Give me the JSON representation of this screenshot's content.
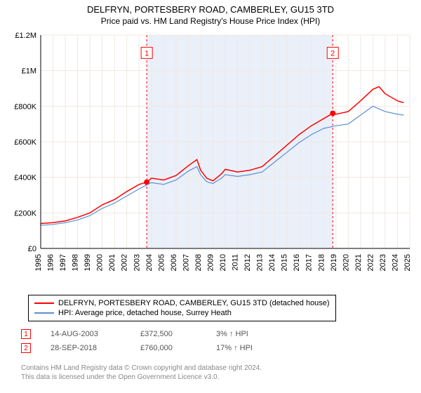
{
  "title": "DELFRYN, PORTESBERY ROAD, CAMBERLEY, GU15 3TD",
  "subtitle": "Price paid vs. HM Land Registry's House Price Index (HPI)",
  "chart": {
    "type": "line",
    "plot_bg": "#ffffff",
    "highlight_bg": "#eaf0fa",
    "highlight_xrange": [
      2003.62,
      2018.74
    ],
    "xlim": [
      1995,
      2025
    ],
    "ylim": [
      0,
      1200000
    ],
    "y_ticks": [
      0,
      200000,
      400000,
      600000,
      800000,
      1000000,
      1200000
    ],
    "y_tick_labels": [
      "£0",
      "£200K",
      "£400K",
      "£600K",
      "£800K",
      "£1M",
      "£1.2M"
    ],
    "x_ticks": [
      1995,
      1996,
      1997,
      1998,
      1999,
      2000,
      2001,
      2002,
      2003,
      2004,
      2005,
      2006,
      2007,
      2008,
      2009,
      2010,
      2011,
      2012,
      2013,
      2014,
      2015,
      2016,
      2017,
      2018,
      2019,
      2020,
      2021,
      2022,
      2023,
      2024,
      2025
    ],
    "grid_color": "#f0e8e0",
    "axis_color": "#000000",
    "series": [
      {
        "name": "DELFRYN, PORTESBERY ROAD, CAMBERLEY, GU15 3TD (detached house)",
        "color": "#ff0000",
        "width": 1.5,
        "data": [
          [
            1995,
            140000
          ],
          [
            1996,
            145000
          ],
          [
            1997,
            155000
          ],
          [
            1998,
            175000
          ],
          [
            1999,
            200000
          ],
          [
            2000,
            245000
          ],
          [
            2001,
            275000
          ],
          [
            2002,
            320000
          ],
          [
            2003,
            360000
          ],
          [
            2003.62,
            372500
          ],
          [
            2004,
            395000
          ],
          [
            2005,
            385000
          ],
          [
            2006,
            410000
          ],
          [
            2007,
            465000
          ],
          [
            2007.7,
            500000
          ],
          [
            2008,
            440000
          ],
          [
            2008.5,
            395000
          ],
          [
            2009,
            380000
          ],
          [
            2009.7,
            420000
          ],
          [
            2010,
            445000
          ],
          [
            2011,
            430000
          ],
          [
            2012,
            440000
          ],
          [
            2013,
            460000
          ],
          [
            2014,
            520000
          ],
          [
            2015,
            580000
          ],
          [
            2016,
            640000
          ],
          [
            2017,
            690000
          ],
          [
            2018,
            730000
          ],
          [
            2018.74,
            760000
          ],
          [
            2019,
            755000
          ],
          [
            2020,
            770000
          ],
          [
            2021,
            830000
          ],
          [
            2022,
            895000
          ],
          [
            2022.5,
            910000
          ],
          [
            2023,
            870000
          ],
          [
            2024,
            830000
          ],
          [
            2024.5,
            820000
          ]
        ]
      },
      {
        "name": "HPI: Average price, detached house, Surrey Heath",
        "color": "#5b8fd6",
        "width": 1.2,
        "data": [
          [
            1995,
            130000
          ],
          [
            1996,
            135000
          ],
          [
            1997,
            145000
          ],
          [
            1998,
            160000
          ],
          [
            1999,
            185000
          ],
          [
            2000,
            225000
          ],
          [
            2001,
            255000
          ],
          [
            2002,
            295000
          ],
          [
            2003,
            335000
          ],
          [
            2004,
            370000
          ],
          [
            2005,
            360000
          ],
          [
            2006,
            385000
          ],
          [
            2007,
            435000
          ],
          [
            2007.7,
            460000
          ],
          [
            2008,
            415000
          ],
          [
            2008.5,
            375000
          ],
          [
            2009,
            365000
          ],
          [
            2009.7,
            395000
          ],
          [
            2010,
            415000
          ],
          [
            2011,
            405000
          ],
          [
            2012,
            415000
          ],
          [
            2013,
            430000
          ],
          [
            2014,
            485000
          ],
          [
            2015,
            540000
          ],
          [
            2016,
            595000
          ],
          [
            2017,
            640000
          ],
          [
            2018,
            675000
          ],
          [
            2019,
            690000
          ],
          [
            2020,
            700000
          ],
          [
            2021,
            750000
          ],
          [
            2022,
            800000
          ],
          [
            2023,
            770000
          ],
          [
            2024,
            755000
          ],
          [
            2024.5,
            750000
          ]
        ]
      }
    ],
    "markers": [
      {
        "label": "1",
        "x": 2003.62,
        "y": 372500,
        "box_y": 1100000
      },
      {
        "label": "2",
        "x": 2018.74,
        "y": 760000,
        "box_y": 1100000
      }
    ]
  },
  "legend": {
    "items": [
      {
        "color": "#ff0000",
        "label": "DELFRYN, PORTESBERY ROAD, CAMBERLEY, GU15 3TD (detached house)"
      },
      {
        "color": "#5b8fd6",
        "label": "HPI: Average price, detached house, Surrey Heath"
      }
    ]
  },
  "transactions": [
    {
      "marker": "1",
      "date": "14-AUG-2003",
      "price": "£372,500",
      "delta": "3% ↑ HPI"
    },
    {
      "marker": "2",
      "date": "28-SEP-2018",
      "price": "£760,000",
      "delta": "17% ↑ HPI"
    }
  ],
  "footer_line1": "Contains HM Land Registry data © Crown copyright and database right 2024.",
  "footer_line2": "This data is licensed under the Open Government Licence v3.0."
}
